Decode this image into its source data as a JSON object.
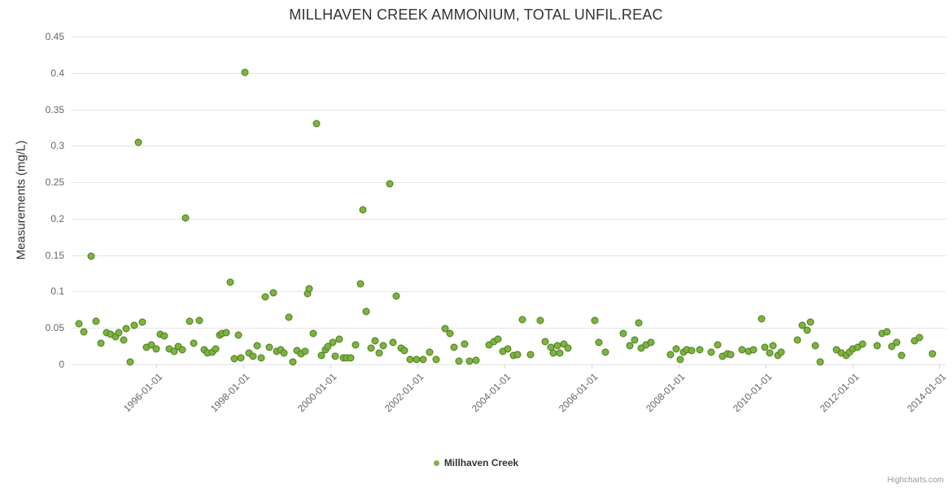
{
  "title": "MILLHAVEN CREEK AMMONIUM, TOTAL UNFIL.REAC",
  "y_axis_title": "Measurements (mg/L)",
  "legend": {
    "label": "Millhaven Creek"
  },
  "credits": "Highcharts.com",
  "colors": {
    "point_fill": "#7cb342",
    "point_stroke": "#4e7a1c",
    "grid": "#e6e6e6",
    "axis_line": "#ccd6eb",
    "title_text": "#333333",
    "label_text": "#666666"
  },
  "chart_data": {
    "type": "scatter",
    "title": "MILLHAVEN CREEK AMMONIUM, TOTAL UNFIL.REAC",
    "xlabel": "",
    "ylabel": "Measurements (mg/L)",
    "legend_position": "bottom-center",
    "grid": "horizontal",
    "xlim": [
      1994.04,
      2014.15
    ],
    "ylim": [
      0,
      0.45
    ],
    "y_ticks": [
      0,
      0.05,
      0.1,
      0.15,
      0.2,
      0.25,
      0.3,
      0.35,
      0.4,
      0.45
    ],
    "x_ticks": [
      {
        "v": 1996,
        "label": "1996-01-01"
      },
      {
        "v": 1998,
        "label": "1998-01-01"
      },
      {
        "v": 2000,
        "label": "2000-01-01"
      },
      {
        "v": 2002,
        "label": "2002-01-01"
      },
      {
        "v": 2004,
        "label": "2004-01-01"
      },
      {
        "v": 2006,
        "label": "2006-01-01"
      },
      {
        "v": 2008,
        "label": "2008-01-01"
      },
      {
        "v": 2010,
        "label": "2010-01-01"
      },
      {
        "v": 2012,
        "label": "2012-01-01"
      },
      {
        "v": 2014,
        "label": "2014-01-01"
      }
    ],
    "series": [
      {
        "name": "Millhaven Creek",
        "points": [
          [
            1994.21,
            0.056
          ],
          [
            1994.32,
            0.045
          ],
          [
            1994.49,
            0.148
          ],
          [
            1994.6,
            0.059
          ],
          [
            1994.71,
            0.029
          ],
          [
            1994.84,
            0.044
          ],
          [
            1994.93,
            0.041
          ],
          [
            1995.05,
            0.038
          ],
          [
            1995.12,
            0.044
          ],
          [
            1995.23,
            0.034
          ],
          [
            1995.29,
            0.049
          ],
          [
            1995.38,
            0.003
          ],
          [
            1995.48,
            0.054
          ],
          [
            1995.57,
            0.305
          ],
          [
            1995.66,
            0.058
          ],
          [
            1995.76,
            0.023
          ],
          [
            1995.87,
            0.027
          ],
          [
            1995.98,
            0.021
          ],
          [
            1996.07,
            0.041
          ],
          [
            1996.17,
            0.039
          ],
          [
            1996.28,
            0.021
          ],
          [
            1996.39,
            0.018
          ],
          [
            1996.49,
            0.025
          ],
          [
            1996.58,
            0.02
          ],
          [
            1996.65,
            0.201
          ],
          [
            1996.75,
            0.059
          ],
          [
            1996.84,
            0.029
          ],
          [
            1996.97,
            0.06
          ],
          [
            1997.08,
            0.02
          ],
          [
            1997.16,
            0.016
          ],
          [
            1997.27,
            0.017
          ],
          [
            1997.36,
            0.021
          ],
          [
            1997.44,
            0.04
          ],
          [
            1997.51,
            0.042
          ],
          [
            1997.59,
            0.044
          ],
          [
            1997.68,
            0.113
          ],
          [
            1997.78,
            0.008
          ],
          [
            1997.87,
            0.04
          ],
          [
            1997.94,
            0.009
          ],
          [
            1998.02,
            0.401
          ],
          [
            1998.11,
            0.016
          ],
          [
            1998.21,
            0.011
          ],
          [
            1998.3,
            0.026
          ],
          [
            1998.39,
            0.009
          ],
          [
            1998.5,
            0.093
          ],
          [
            1998.58,
            0.023
          ],
          [
            1998.67,
            0.098
          ],
          [
            1998.75,
            0.018
          ],
          [
            1998.84,
            0.02
          ],
          [
            1998.93,
            0.016
          ],
          [
            1999.03,
            0.065
          ],
          [
            1999.12,
            0.003
          ],
          [
            1999.22,
            0.019
          ],
          [
            1999.31,
            0.015
          ],
          [
            1999.4,
            0.018
          ],
          [
            1999.46,
            0.097
          ],
          [
            1999.51,
            0.104
          ],
          [
            1999.59,
            0.042
          ],
          [
            1999.68,
            0.33
          ],
          [
            1999.78,
            0.012
          ],
          [
            1999.87,
            0.02
          ],
          [
            1999.94,
            0.025
          ],
          [
            2000.04,
            0.03
          ],
          [
            2000.11,
            0.011
          ],
          [
            2000.19,
            0.035
          ],
          [
            2000.28,
            0.009
          ],
          [
            2000.36,
            0.009
          ],
          [
            2000.45,
            0.009
          ],
          [
            2000.56,
            0.027
          ],
          [
            2000.69,
            0.111
          ],
          [
            2000.73,
            0.212
          ],
          [
            2000.82,
            0.073
          ],
          [
            2000.92,
            0.022
          ],
          [
            2001.01,
            0.032
          ],
          [
            2001.12,
            0.016
          ],
          [
            2001.21,
            0.026
          ],
          [
            2001.36,
            0.248
          ],
          [
            2001.42,
            0.03
          ],
          [
            2001.51,
            0.094
          ],
          [
            2001.61,
            0.022
          ],
          [
            2001.7,
            0.019
          ],
          [
            2001.83,
            0.007
          ],
          [
            2001.98,
            0.007
          ],
          [
            2002.13,
            0.007
          ],
          [
            2002.28,
            0.017
          ],
          [
            2002.43,
            0.007
          ],
          [
            2002.62,
            0.049
          ],
          [
            2002.73,
            0.042
          ],
          [
            2002.84,
            0.023
          ],
          [
            2002.95,
            0.005
          ],
          [
            2003.07,
            0.028
          ],
          [
            2003.18,
            0.005
          ],
          [
            2003.33,
            0.006
          ],
          [
            2003.63,
            0.027
          ],
          [
            2003.74,
            0.031
          ],
          [
            2003.85,
            0.035
          ],
          [
            2003.96,
            0.018
          ],
          [
            2004.07,
            0.021
          ],
          [
            2004.19,
            0.012
          ],
          [
            2004.3,
            0.013
          ],
          [
            2004.41,
            0.061
          ],
          [
            2004.6,
            0.013
          ],
          [
            2004.82,
            0.06
          ],
          [
            2004.93,
            0.031
          ],
          [
            2005.05,
            0.023
          ],
          [
            2005.12,
            0.016
          ],
          [
            2005.2,
            0.026
          ],
          [
            2005.27,
            0.016
          ],
          [
            2005.35,
            0.028
          ],
          [
            2005.46,
            0.022
          ],
          [
            2006.06,
            0.06
          ],
          [
            2006.17,
            0.03
          ],
          [
            2006.32,
            0.017
          ],
          [
            2006.73,
            0.042
          ],
          [
            2006.88,
            0.026
          ],
          [
            2006.99,
            0.034
          ],
          [
            2007.07,
            0.057
          ],
          [
            2007.14,
            0.022
          ],
          [
            2007.25,
            0.027
          ],
          [
            2007.36,
            0.03
          ],
          [
            2007.81,
            0.013
          ],
          [
            2007.93,
            0.021
          ],
          [
            2008.04,
            0.007
          ],
          [
            2008.11,
            0.017
          ],
          [
            2008.19,
            0.02
          ],
          [
            2008.3,
            0.019
          ],
          [
            2008.49,
            0.02
          ],
          [
            2008.75,
            0.017
          ],
          [
            2008.9,
            0.027
          ],
          [
            2009.01,
            0.011
          ],
          [
            2009.12,
            0.015
          ],
          [
            2009.2,
            0.013
          ],
          [
            2009.46,
            0.02
          ],
          [
            2009.61,
            0.018
          ],
          [
            2009.72,
            0.02
          ],
          [
            2009.91,
            0.063
          ],
          [
            2009.98,
            0.023
          ],
          [
            2010.09,
            0.016
          ],
          [
            2010.17,
            0.026
          ],
          [
            2010.28,
            0.012
          ],
          [
            2010.36,
            0.017
          ],
          [
            2010.73,
            0.034
          ],
          [
            2010.84,
            0.054
          ],
          [
            2010.95,
            0.047
          ],
          [
            2011.03,
            0.058
          ],
          [
            2011.14,
            0.026
          ],
          [
            2011.25,
            0.003
          ],
          [
            2011.63,
            0.02
          ],
          [
            2011.74,
            0.016
          ],
          [
            2011.85,
            0.012
          ],
          [
            2011.93,
            0.017
          ],
          [
            2012.0,
            0.021
          ],
          [
            2012.11,
            0.023
          ],
          [
            2012.22,
            0.028
          ],
          [
            2012.56,
            0.026
          ],
          [
            2012.67,
            0.042
          ],
          [
            2012.79,
            0.045
          ],
          [
            2012.9,
            0.025
          ],
          [
            2013.01,
            0.03
          ],
          [
            2013.12,
            0.012
          ],
          [
            2013.42,
            0.032
          ],
          [
            2013.53,
            0.037
          ],
          [
            2013.83,
            0.015
          ]
        ]
      }
    ]
  }
}
